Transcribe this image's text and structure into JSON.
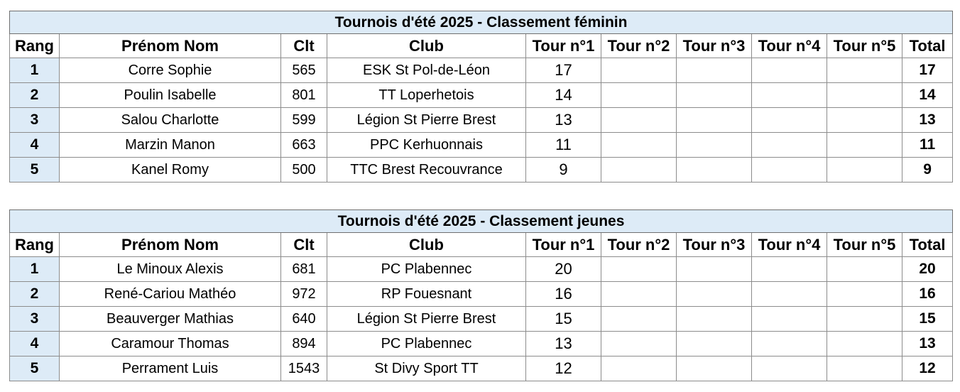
{
  "tables": [
    {
      "title": "Tournois d'été 2025 - Classement féminin",
      "headers": [
        "Rang",
        "Prénom Nom",
        "Clt",
        "Club",
        "Tour n°1",
        "Tour n°2",
        "Tour n°3",
        "Tour n°4",
        "Tour n°5",
        "Total"
      ],
      "rows": [
        {
          "rang": "1",
          "nom": "Corre Sophie",
          "clt": "565",
          "club": "ESK St Pol-de-Léon",
          "tour1": "17",
          "tour2": "",
          "tour3": "",
          "tour4": "",
          "tour5": "",
          "total": "17"
        },
        {
          "rang": "2",
          "nom": "Poulin Isabelle",
          "clt": "801",
          "club": "TT Loperhetois",
          "tour1": "14",
          "tour2": "",
          "tour3": "",
          "tour4": "",
          "tour5": "",
          "total": "14"
        },
        {
          "rang": "3",
          "nom": "Salou Charlotte",
          "clt": "599",
          "club": "Légion St Pierre Brest",
          "tour1": "13",
          "tour2": "",
          "tour3": "",
          "tour4": "",
          "tour5": "",
          "total": "13"
        },
        {
          "rang": "4",
          "nom": "Marzin Manon",
          "clt": "663",
          "club": "PPC Kerhuonnais",
          "tour1": "11",
          "tour2": "",
          "tour3": "",
          "tour4": "",
          "tour5": "",
          "total": "11"
        },
        {
          "rang": "5",
          "nom": "Kanel Romy",
          "clt": "500",
          "club": "TTC Brest Recouvrance",
          "tour1": "9",
          "tour2": "",
          "tour3": "",
          "tour4": "",
          "tour5": "",
          "total": "9"
        }
      ]
    },
    {
      "title": "Tournois d'été 2025 - Classement jeunes",
      "headers": [
        "Rang",
        "Prénom Nom",
        "Clt",
        "Club",
        "Tour n°1",
        "Tour n°2",
        "Tour n°3",
        "Tour n°4",
        "Tour n°5",
        "Total"
      ],
      "rows": [
        {
          "rang": "1",
          "nom": "Le Minoux Alexis",
          "clt": "681",
          "club": "PC Plabennec",
          "tour1": "20",
          "tour2": "",
          "tour3": "",
          "tour4": "",
          "tour5": "",
          "total": "20"
        },
        {
          "rang": "2",
          "nom": "René-Cariou Mathéo",
          "clt": "972",
          "club": "RP Fouesnant",
          "tour1": "16",
          "tour2": "",
          "tour3": "",
          "tour4": "",
          "tour5": "",
          "total": "16"
        },
        {
          "rang": "3",
          "nom": "Beauverger Mathias",
          "clt": "640",
          "club": "Légion St Pierre Brest",
          "tour1": "15",
          "tour2": "",
          "tour3": "",
          "tour4": "",
          "tour5": "",
          "total": "15"
        },
        {
          "rang": "4",
          "nom": "Caramour Thomas",
          "clt": "894",
          "club": "PC Plabennec",
          "tour1": "13",
          "tour2": "",
          "tour3": "",
          "tour4": "",
          "tour5": "",
          "total": "13"
        },
        {
          "rang": "5",
          "nom": "Perrament Luis",
          "clt": "1543",
          "club": "St Divy Sport TT",
          "tour1": "12",
          "tour2": "",
          "tour3": "",
          "tour4": "",
          "tour5": "",
          "total": "12"
        }
      ]
    }
  ],
  "colors": {
    "header_fill": "#ddebf7",
    "grid": "#8c8c8c"
  }
}
